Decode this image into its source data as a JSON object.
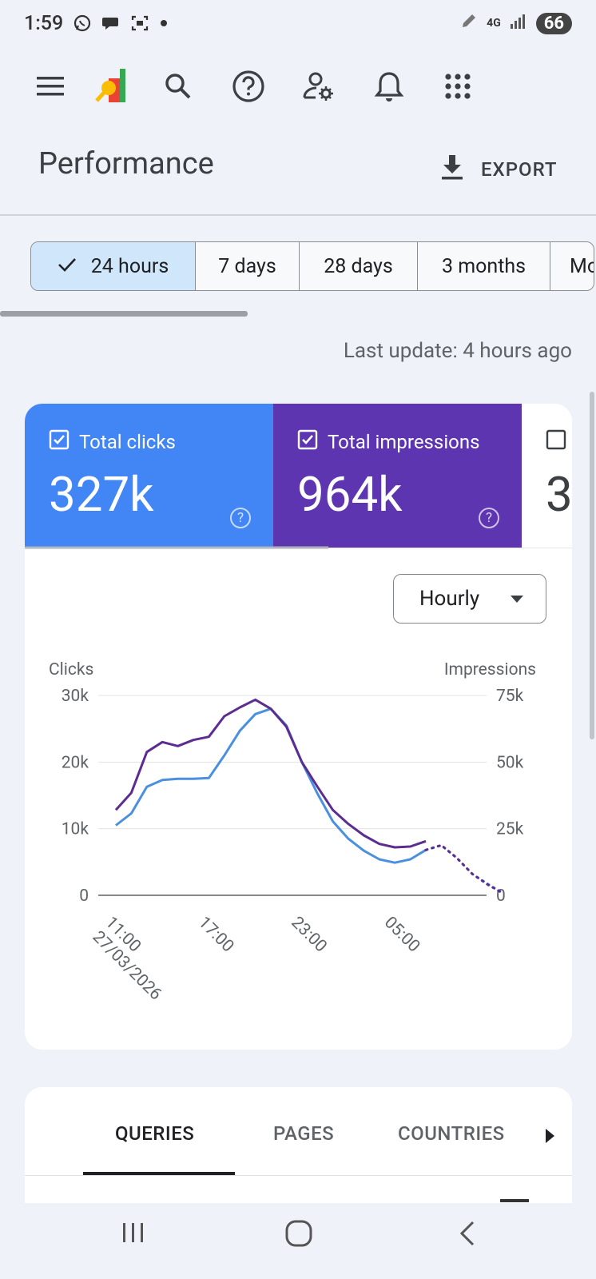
{
  "status_bar": {
    "time": "1:59",
    "network": "4G",
    "battery": "66"
  },
  "header": {
    "title": "Performance",
    "export_label": "EXPORT"
  },
  "date_range": {
    "options": [
      "24 hours",
      "7 days",
      "28 days",
      "3 months",
      "Mo"
    ],
    "selected": "24 hours"
  },
  "last_update": "Last update: 4 hours ago",
  "metrics": [
    {
      "label": "Total clicks",
      "value": "327k",
      "checked": true,
      "color": "#4285f4"
    },
    {
      "label": "Total impressions",
      "value": "964k",
      "checked": true,
      "color": "#5e35b1"
    },
    {
      "label": "",
      "value": "3",
      "checked": false
    }
  ],
  "granularity": "Hourly",
  "chart_data": {
    "type": "line",
    "left_axis_label": "Clicks",
    "right_axis_label": "Impressions",
    "left_ticks": [
      "0",
      "10k",
      "20k",
      "30k"
    ],
    "right_ticks": [
      "0",
      "25k",
      "50k",
      "75k"
    ],
    "ylim_left": [
      0,
      30000
    ],
    "ylim_right": [
      0,
      75000
    ],
    "x_tick_labels": [
      "11:00",
      "17:00",
      "23:00",
      "05:00"
    ],
    "x_first_date": "27/03/2026",
    "grid": true,
    "series": [
      {
        "name": "Clicks",
        "color": "#4a8fe0",
        "axis": "left",
        "values": [
          10500,
          12300,
          16300,
          17300,
          17500,
          17500,
          17600,
          21000,
          24700,
          27200,
          28000,
          25500,
          20000,
          15300,
          11100,
          8500,
          6700,
          5400,
          4900,
          5400,
          6800
        ],
        "projected": [
          6800,
          7500,
          5600,
          3200,
          1700,
          300
        ]
      },
      {
        "name": "Impressions",
        "color": "#5c2d91",
        "axis": "right",
        "values": [
          32000,
          38500,
          53800,
          57500,
          56000,
          58300,
          59500,
          67200,
          70500,
          73400,
          70000,
          63300,
          50000,
          40800,
          32000,
          26800,
          22500,
          19300,
          18000,
          18300,
          20300
        ],
        "projected": [
          17000,
          18800,
          14000,
          8000,
          4000,
          700
        ]
      }
    ]
  },
  "tabs": {
    "items": [
      "QUERIES",
      "PAGES",
      "COUNTRIES"
    ],
    "active": "QUERIES"
  }
}
